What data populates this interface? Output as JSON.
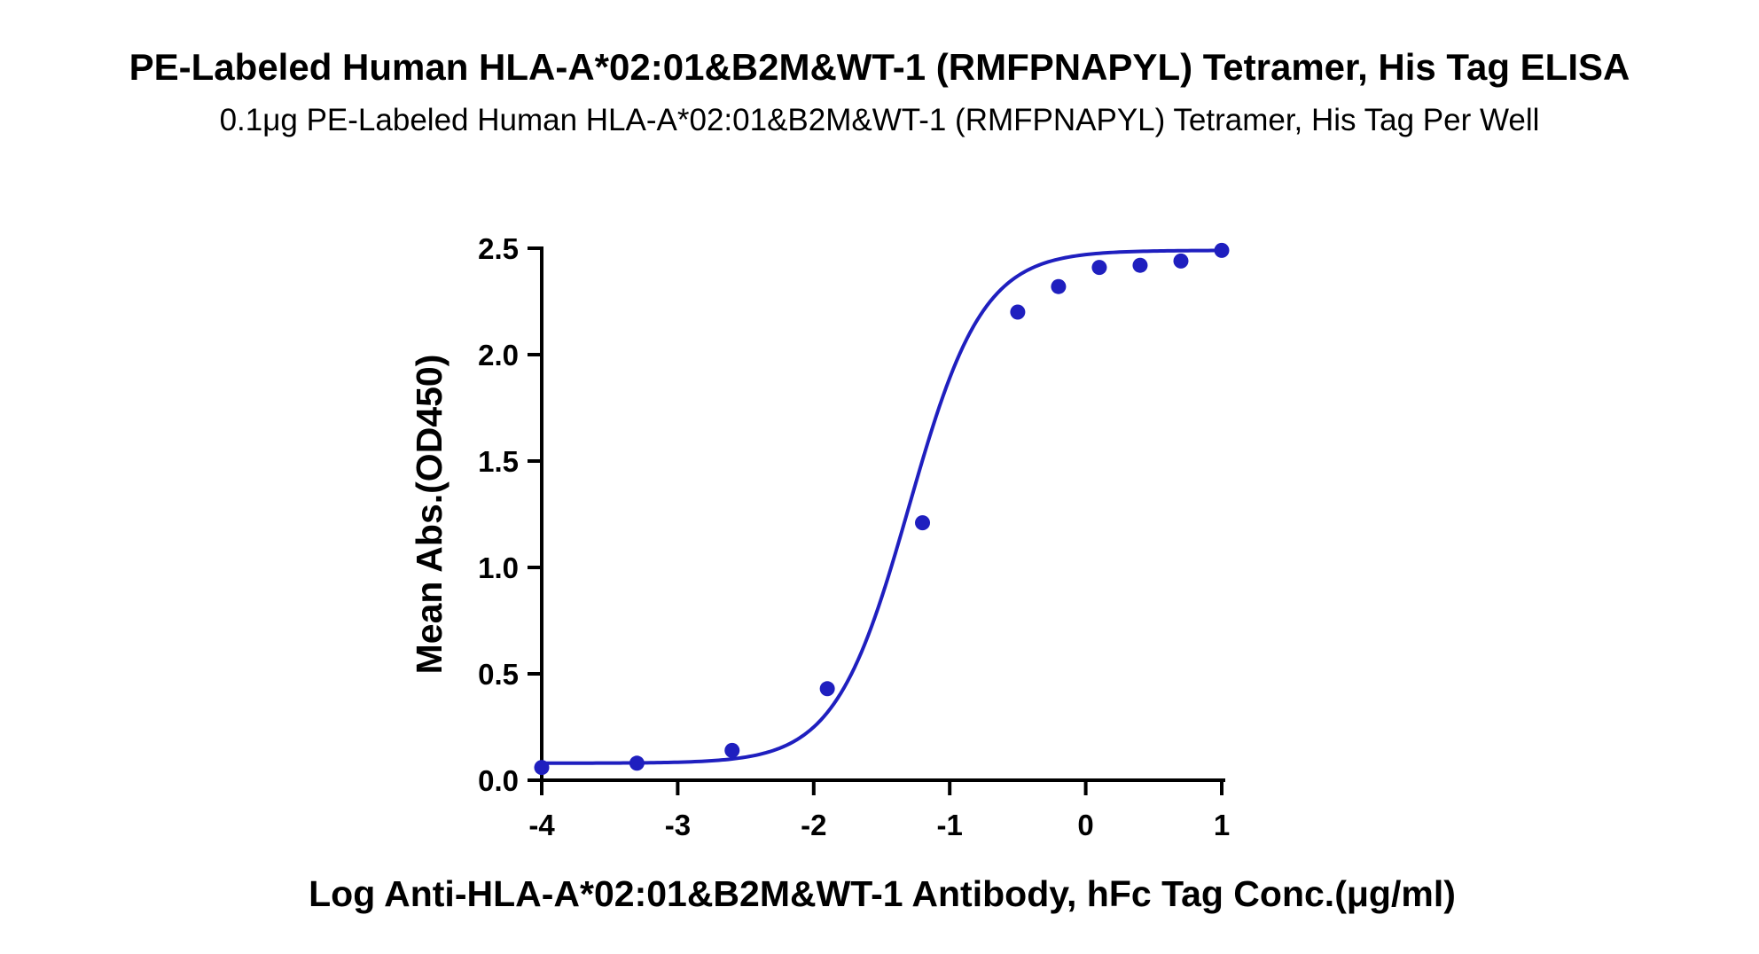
{
  "title": "PE-Labeled Human HLA-A*02:01&B2M&WT-1 (RMFPNAPYL) Tetramer, His Tag ELISA",
  "subtitle": "0.1μg PE-Labeled Human HLA-A*02:01&B2M&WT-1 (RMFPNAPYL) Tetramer, His Tag Per Well",
  "chart_data": {
    "type": "scatter",
    "title": "PE-Labeled Human HLA-A*02:01&B2M&WT-1 (RMFPNAPYL) Tetramer, His Tag ELISA",
    "subtitle": "0.1μg PE-Labeled Human HLA-A*02:01&B2M&WT-1 (RMFPNAPYL) Tetramer, His Tag Per Well",
    "xlabel": "Log Anti-HLA-A*02:01&B2M&WT-1 Antibody, hFc Tag Conc.(μg/ml)",
    "ylabel": "Mean Abs.(OD450)",
    "xlim": [
      -4,
      1
    ],
    "ylim": [
      0,
      2.5
    ],
    "xticks": [
      -4,
      -3,
      -2,
      -1,
      0,
      1
    ],
    "xtick_labels": [
      "-4",
      "-3",
      "-2",
      "-1",
      "0",
      "1"
    ],
    "yticks": [
      0,
      0.5,
      1,
      1.5,
      2,
      2.5
    ],
    "ytick_labels": [
      "0.0",
      "0.5",
      "1.0",
      "1.5",
      "2.0",
      "2.5"
    ],
    "grid": false,
    "color": "#1f1fbf",
    "points": {
      "x": [
        -4.0,
        -3.3,
        -2.6,
        -1.9,
        -1.2,
        -0.5,
        -0.2,
        0.1,
        0.4,
        0.7,
        1.0
      ],
      "y": [
        0.06,
        0.08,
        0.14,
        0.43,
        1.21,
        2.2,
        2.32,
        2.41,
        2.42,
        2.44,
        2.49
      ]
    },
    "fit_curve": {
      "model": "4PL",
      "bottom": 0.08,
      "top": 2.49,
      "logEC50": -1.3,
      "hill": 1.6
    }
  }
}
